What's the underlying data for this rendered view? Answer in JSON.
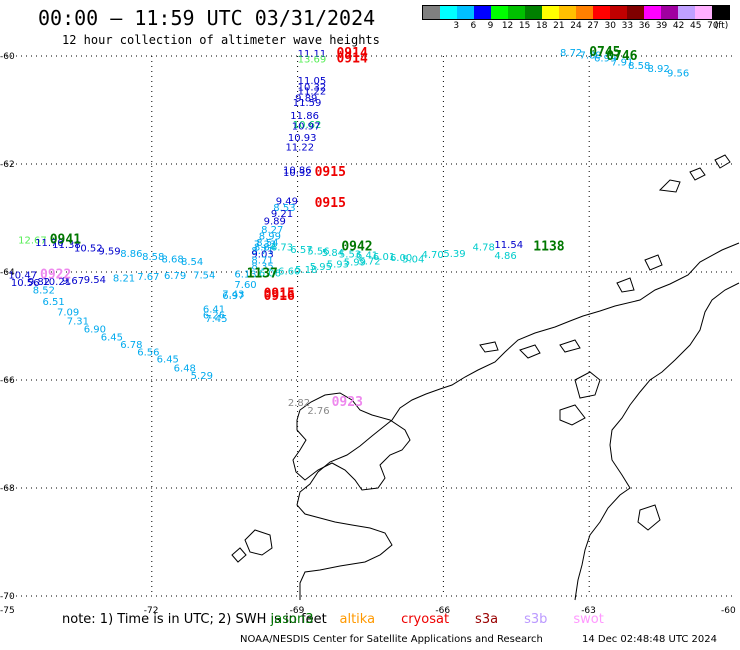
{
  "header": {
    "title": "00:00 – 11:59 UTC 03/31/2024",
    "subtitle": "12 hour collection of altimeter wave heights"
  },
  "colorbar": {
    "unit": "(ft)",
    "colors": [
      "#808080",
      "#00ffff",
      "#00c0ff",
      "#0000ff",
      "#00ff00",
      "#00c000",
      "#008000",
      "#ffff00",
      "#ffc000",
      "#ff8000",
      "#ff0000",
      "#c00000",
      "#800000",
      "#ff00ff",
      "#a000a0",
      "#c0a0ff",
      "#ffb0ff",
      "#000000"
    ],
    "labels": [
      "3",
      "6",
      "9",
      "12",
      "15",
      "18",
      "21",
      "24",
      "27",
      "30",
      "33",
      "36",
      "39",
      "42",
      "45",
      "70"
    ]
  },
  "axes": {
    "lat_labels": [
      "-60",
      "-62",
      "-64",
      "-66",
      "-68",
      "-70"
    ],
    "lon_labels": [
      "-75",
      "-72",
      "-69",
      "-66",
      "-63",
      "-60"
    ]
  },
  "observations": [
    {
      "t": "11.11",
      "c": "#0000cc",
      "lon": -69.0,
      "lat": -60.02
    },
    {
      "t": "13.69",
      "c": "#55ee55",
      "lon": -69.0,
      "lat": -60.12
    },
    {
      "t": "11.05",
      "c": "#0000cc",
      "lon": -69.0,
      "lat": -60.52
    },
    {
      "t": "10.32",
      "c": "#0000cc",
      "lon": -69.0,
      "lat": -60.64
    },
    {
      "t": "11.22",
      "c": "#0000cc",
      "lon": -69.0,
      "lat": -60.71
    },
    {
      "t": "9.89",
      "c": "#0000cc",
      "lon": -69.05,
      "lat": -60.84
    },
    {
      "t": "11.59",
      "c": "#0000cc",
      "lon": -69.1,
      "lat": -60.93
    },
    {
      "t": "11.86",
      "c": "#0000cc",
      "lon": -69.15,
      "lat": -61.17
    },
    {
      "t": "10.62",
      "c": "#00cc66",
      "lon": -69.1,
      "lat": -61.33
    },
    {
      "t": "10.97",
      "c": "#0000cc",
      "lon": -69.12,
      "lat": -61.36
    },
    {
      "t": "10.93",
      "c": "#0000cc",
      "lon": -69.2,
      "lat": -61.57
    },
    {
      "t": "11.22",
      "c": "#0000cc",
      "lon": -69.25,
      "lat": -61.75
    },
    {
      "t": "10.86",
      "c": "#0000cc",
      "lon": -69.3,
      "lat": -62.18
    },
    {
      "t": "10.32",
      "c": "#0000cc",
      "lon": -69.3,
      "lat": -62.22
    },
    {
      "t": "9.49",
      "c": "#0000cc",
      "lon": -69.45,
      "lat": -62.75
    },
    {
      "t": "8.53",
      "c": "#00aaee",
      "lon": -69.5,
      "lat": -62.87
    },
    {
      "t": "9.21",
      "c": "#0000cc",
      "lon": -69.55,
      "lat": -62.98
    },
    {
      "t": "9.89",
      "c": "#0000cc",
      "lon": -69.7,
      "lat": -63.12
    },
    {
      "t": "8.27",
      "c": "#00aaee",
      "lon": -69.75,
      "lat": -63.28
    },
    {
      "t": "8.99",
      "c": "#00aaee",
      "lon": -69.8,
      "lat": -63.4
    },
    {
      "t": "8.54",
      "c": "#00aaee",
      "lon": -69.85,
      "lat": -63.52
    },
    {
      "t": "7.33",
      "c": "#00aaee",
      "lon": -69.9,
      "lat": -63.55
    },
    {
      "t": "8.84",
      "c": "#00aaee",
      "lon": -69.9,
      "lat": -63.6
    },
    {
      "t": "8.71",
      "c": "#00aaee",
      "lon": -69.95,
      "lat": -63.67
    },
    {
      "t": "9.03",
      "c": "#0000cc",
      "lon": -69.95,
      "lat": -63.73
    },
    {
      "t": "8.71",
      "c": "#00aaee",
      "lon": -69.95,
      "lat": -63.84
    },
    {
      "t": "8.35",
      "c": "#00aaee",
      "lon": -69.95,
      "lat": -63.95
    },
    {
      "t": "6.73",
      "c": "#00cccc",
      "lon": -69.55,
      "lat": -63.6
    },
    {
      "t": "6.57",
      "c": "#00cccc",
      "lon": -69.15,
      "lat": -63.65
    },
    {
      "t": "5.56",
      "c": "#00cccc",
      "lon": -68.8,
      "lat": -63.68
    },
    {
      "t": "5.84",
      "c": "#00cccc",
      "lon": -68.5,
      "lat": -63.7
    },
    {
      "t": "5.53",
      "c": "#00cccc",
      "lon": -68.15,
      "lat": -63.73
    },
    {
      "t": "6.41",
      "c": "#00cccc",
      "lon": -67.8,
      "lat": -63.75
    },
    {
      "t": "6.01",
      "c": "#00cccc",
      "lon": -67.45,
      "lat": -63.78
    },
    {
      "t": "6.00",
      "c": "#00cccc",
      "lon": -67.1,
      "lat": -63.8
    },
    {
      "t": "5.04",
      "c": "#00cccc",
      "lon": -66.85,
      "lat": -63.82
    },
    {
      "t": "4.70",
      "c": "#00cccc",
      "lon": -66.45,
      "lat": -63.74
    },
    {
      "t": "5.39",
      "c": "#00cccc",
      "lon": -66.0,
      "lat": -63.72
    },
    {
      "t": "4.78",
      "c": "#00cccc",
      "lon": -65.4,
      "lat": -63.6
    },
    {
      "t": "11.54",
      "c": "#0000cc",
      "lon": -64.95,
      "lat": -63.56
    },
    {
      "t": "4.86",
      "c": "#00cccc",
      "lon": -64.95,
      "lat": -63.76
    },
    {
      "t": "6.60",
      "c": "#00cccc",
      "lon": -69.4,
      "lat": -64.05
    },
    {
      "t": "5.18",
      "c": "#00cccc",
      "lon": -69.05,
      "lat": -64.02
    },
    {
      "t": "5.95",
      "c": "#00cccc",
      "lon": -68.75,
      "lat": -63.96
    },
    {
      "t": "5.93",
      "c": "#00cccc",
      "lon": -68.4,
      "lat": -63.92
    },
    {
      "t": "5.99",
      "c": "#00cccc",
      "lon": -68.05,
      "lat": -63.88
    },
    {
      "t": "5.72",
      "c": "#00cccc",
      "lon": -67.75,
      "lat": -63.86
    },
    {
      "t": "6.06",
      "c": "#00cccc",
      "lon": -69.8,
      "lat": -64.08
    },
    {
      "t": "12.67",
      "c": "#55ee55",
      "lon": -74.75,
      "lat": -63.47
    },
    {
      "t": "11.70",
      "c": "#0000cc",
      "lon": -74.4,
      "lat": -63.52
    },
    {
      "t": "11.38",
      "c": "#0000cc",
      "lon": -74.05,
      "lat": -63.56
    },
    {
      "t": "10.52",
      "c": "#0000cc",
      "lon": -73.6,
      "lat": -63.62
    },
    {
      "t": "9.59",
      "c": "#0000cc",
      "lon": -73.1,
      "lat": -63.68
    },
    {
      "t": "8.86",
      "c": "#00aaee",
      "lon": -72.65,
      "lat": -63.72
    },
    {
      "t": "8.58",
      "c": "#00aaee",
      "lon": -72.2,
      "lat": -63.78
    },
    {
      "t": "8.68",
      "c": "#00aaee",
      "lon": -71.8,
      "lat": -63.82
    },
    {
      "t": "8.54",
      "c": "#00aaee",
      "lon": -71.4,
      "lat": -63.87
    },
    {
      "t": "10.47",
      "c": "#0000cc",
      "lon": -74.95,
      "lat": -64.12
    },
    {
      "t": "10.56",
      "c": "#0000cc",
      "lon": -74.9,
      "lat": -64.26
    },
    {
      "t": "9.82",
      "c": "#0000cc",
      "lon": -74.55,
      "lat": -64.24
    },
    {
      "t": "10.21",
      "c": "#0000cc",
      "lon": -74.25,
      "lat": -64.24
    },
    {
      "t": "9.67",
      "c": "#0000cc",
      "lon": -73.85,
      "lat": -64.22
    },
    {
      "t": "9.54",
      "c": "#0000cc",
      "lon": -73.4,
      "lat": -64.2
    },
    {
      "t": "8.21",
      "c": "#00aaee",
      "lon": -72.8,
      "lat": -64.18
    },
    {
      "t": "7.67",
      "c": "#00aaee",
      "lon": -72.3,
      "lat": -64.15
    },
    {
      "t": "6.79",
      "c": "#00aaee",
      "lon": -71.75,
      "lat": -64.13
    },
    {
      "t": "7.54",
      "c": "#00aaee",
      "lon": -71.15,
      "lat": -64.12
    },
    {
      "t": "6.13",
      "c": "#00aaee",
      "lon": -70.3,
      "lat": -64.1
    },
    {
      "t": "8.52",
      "c": "#00aaee",
      "lon": -74.45,
      "lat": -64.4
    },
    {
      "t": "6.51",
      "c": "#00aaee",
      "lon": -74.25,
      "lat": -64.61
    },
    {
      "t": "7.09",
      "c": "#00aaee",
      "lon": -73.95,
      "lat": -64.81
    },
    {
      "t": "7.31",
      "c": "#00aaee",
      "lon": -73.75,
      "lat": -64.97
    },
    {
      "t": "6.90",
      "c": "#00aaee",
      "lon": -73.4,
      "lat": -65.12
    },
    {
      "t": "6.45",
      "c": "#00aaee",
      "lon": -73.05,
      "lat": -65.27
    },
    {
      "t": "6.78",
      "c": "#00aaee",
      "lon": -72.65,
      "lat": -65.41
    },
    {
      "t": "6.56",
      "c": "#00aaee",
      "lon": -72.3,
      "lat": -65.55
    },
    {
      "t": "6.45",
      "c": "#00aaee",
      "lon": -71.9,
      "lat": -65.68
    },
    {
      "t": "6.48",
      "c": "#00aaee",
      "lon": -71.55,
      "lat": -65.84
    },
    {
      "t": "5.29",
      "c": "#00aaee",
      "lon": -71.2,
      "lat": -65.98
    },
    {
      "t": "7.60",
      "c": "#00aaee",
      "lon": -70.3,
      "lat": -64.3
    },
    {
      "t": "7.43",
      "c": "#00aaee",
      "lon": -70.55,
      "lat": -64.47
    },
    {
      "t": "6.97",
      "c": "#00aaee",
      "lon": -70.55,
      "lat": -64.5
    },
    {
      "t": "6.41",
      "c": "#00aaee",
      "lon": -70.95,
      "lat": -64.75
    },
    {
      "t": "6.26",
      "c": "#00aaee",
      "lon": -70.95,
      "lat": -64.86
    },
    {
      "t": "7.45",
      "c": "#00aaee",
      "lon": -70.9,
      "lat": -64.93
    },
    {
      "t": "8.72",
      "c": "#00aaee",
      "lon": -63.6,
      "lat": -60.0
    },
    {
      "t": "7.89",
      "c": "#00aaee",
      "lon": -63.2,
      "lat": -60.05
    },
    {
      "t": "6.99",
      "c": "#00aaee",
      "lon": -62.9,
      "lat": -60.1
    },
    {
      "t": "7.91",
      "c": "#00aaee",
      "lon": -62.55,
      "lat": -60.18
    },
    {
      "t": "8.58",
      "c": "#00aaee",
      "lon": -62.2,
      "lat": -60.24
    },
    {
      "t": "8.92",
      "c": "#00aaee",
      "lon": -61.8,
      "lat": -60.3
    },
    {
      "t": "9.56",
      "c": "#00aaee",
      "lon": -61.4,
      "lat": -60.38
    },
    {
      "t": "2.82",
      "c": "#888888",
      "lon": -69.2,
      "lat": -66.48
    },
    {
      "t": "2.76",
      "c": "#888888",
      "lon": -68.8,
      "lat": -66.63
    }
  ],
  "pass_times": [
    {
      "t": "0914",
      "c": "#ee0000",
      "lon": -68.2,
      "lat": -60.02
    },
    {
      "t": "0914",
      "c": "#ee0000",
      "lon": -68.2,
      "lat": -60.12
    },
    {
      "t": "0915",
      "c": "#ee0000",
      "lon": -68.65,
      "lat": -62.22
    },
    {
      "t": "0915",
      "c": "#ee0000",
      "lon": -68.65,
      "lat": -62.8
    },
    {
      "t": "0941",
      "c": "#007700",
      "lon": -74.1,
      "lat": -63.47
    },
    {
      "t": "0942",
      "c": "#007700",
      "lon": -68.1,
      "lat": -63.6
    },
    {
      "t": "1138",
      "c": "#007700",
      "lon": -64.15,
      "lat": -63.6
    },
    {
      "t": "1137",
      "c": "#007700",
      "lon": -70.05,
      "lat": -64.1
    },
    {
      "t": "0922",
      "c": "#ee88ee",
      "lon": -74.3,
      "lat": -64.12
    },
    {
      "t": "0915",
      "c": "#ee0000",
      "lon": -69.7,
      "lat": -64.47
    },
    {
      "t": "0916",
      "c": "#ee0000",
      "lon": -69.7,
      "lat": -64.52
    },
    {
      "t": "0745",
      "c": "#007700",
      "lon": -63.0,
      "lat": -60.0
    },
    {
      "t": "0746",
      "c": "#007700",
      "lon": -62.65,
      "lat": -60.07
    },
    {
      "t": "0923",
      "c": "#ee88ee",
      "lon": -68.3,
      "lat": -66.48
    }
  ],
  "footer": {
    "note_prefix": "note: 1) Time is in UTC; 2) SWH is in feet",
    "sat_jason": "jason3",
    "sat_altika": "altika",
    "sat_cryosat": "cryosat",
    "sat_s3a": "s3a",
    "sat_s3b": "s3b",
    "sat_swot": "swot",
    "credit": "NOAA/NESDIS Center for Satellite Applications and Research",
    "generated": "14 Dec 02:48:48 UTC 2024"
  }
}
